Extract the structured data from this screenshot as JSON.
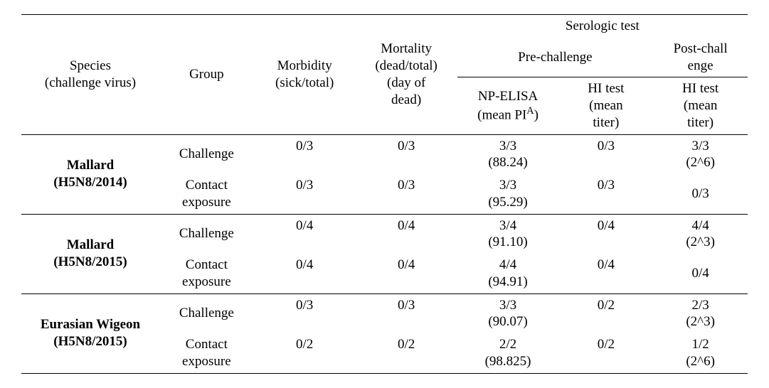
{
  "headers": {
    "species": "Species\n(challenge virus)",
    "group": "Group",
    "morbidity": "Morbidity\n(sick/total)",
    "mortality": "Mortality\n(dead/total)\n(day of\ndead)",
    "serologic_test": "Serologic test",
    "pre_challenge": "Pre-challenge",
    "post_challenge": "Post-chall\nenge",
    "np_elisa_pre": "NP-ELISA\n",
    "np_elisa_suffix_pre": "(mean PI",
    "np_elisa_sup": "A",
    "np_elisa_close": ")",
    "hi_pre": "HI test\n(mean\ntiter)",
    "hi_post": "HI test\n(mean\ntiter)"
  },
  "sections": [
    {
      "species_label": "Mallard\n(H5N8/2014)",
      "rows": [
        {
          "group": "Challenge",
          "morbidity": "0/3",
          "mortality": "0/3",
          "np_elisa": "3/3\n(88.24)",
          "hi_pre": "0/3",
          "hi_post": "3/3\n(2^6)"
        },
        {
          "group": "Contact\nexposure",
          "morbidity": "0/3",
          "mortality": "0/3",
          "np_elisa": "3/3\n(95.29)",
          "hi_pre": "0/3",
          "hi_post": "0/3"
        }
      ]
    },
    {
      "species_label": "Mallard\n(H5N8/2015)",
      "rows": [
        {
          "group": "Challenge",
          "morbidity": "0/4",
          "mortality": "0/4",
          "np_elisa": "3/4\n(91.10)",
          "hi_pre": "0/4",
          "hi_post": "4/4\n(2^3)"
        },
        {
          "group": "Contact\nexposure",
          "morbidity": "0/4",
          "mortality": "0/4",
          "np_elisa": "4/4\n(94.91)",
          "hi_pre": "0/4",
          "hi_post": "0/4"
        }
      ]
    },
    {
      "species_label": "Eurasian Wigeon\n(H5N8/2015)",
      "rows": [
        {
          "group": "Challenge",
          "morbidity": "0/3",
          "mortality": "0/3",
          "np_elisa": "3/3\n(90.07)",
          "hi_pre": "0/2",
          "hi_post": "2/3\n(2^3)"
        },
        {
          "group": "Contact\nexposure",
          "morbidity": "0/2",
          "mortality": "0/2",
          "np_elisa": "2/2\n(98.825)",
          "hi_pre": "0/2",
          "hi_post": "1/2\n(2^6)"
        }
      ]
    }
  ]
}
